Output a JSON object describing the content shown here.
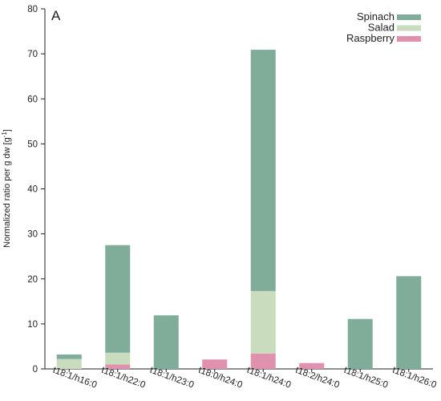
{
  "chart_data": {
    "type": "bar",
    "stacked": true,
    "panel_label": "A",
    "ylabel_main": "Normalized ratio per g dw [g",
    "ylabel_sup": "-1",
    "ylabel_end": "]",
    "ylim": [
      0,
      80
    ],
    "yticks": [
      0,
      10,
      20,
      30,
      40,
      50,
      60,
      70,
      80
    ],
    "grid": false,
    "legend_position": "top-right",
    "categories": [
      "t18:1/h16:0",
      "t18:1/h22:0",
      "t18:1/h23:0",
      "t18:0/h24:0",
      "t18:1/h24:0",
      "t18:2/h24:0",
      "t18:1/h25:0",
      "t18:1/h26:0"
    ],
    "series": [
      {
        "name": "Raspberry",
        "color": "#e091ad",
        "values": [
          0,
          1.0,
          0,
          2.1,
          3.4,
          1.3,
          0,
          0
        ]
      },
      {
        "name": "Salad",
        "color": "#c9dcbe",
        "values": [
          2.2,
          2.6,
          0,
          0,
          13.9,
          0,
          0,
          0
        ]
      },
      {
        "name": "Spinach",
        "color": "#80ad9a",
        "values": [
          1.0,
          23.9,
          11.9,
          0,
          53.6,
          0,
          11.1,
          20.6
        ]
      }
    ],
    "legend_order": [
      "Spinach",
      "Salad",
      "Raspberry"
    ]
  }
}
